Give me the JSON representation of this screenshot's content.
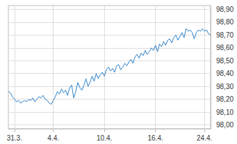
{
  "chart_data": {
    "type": "line",
    "color": "#2a7fc9",
    "grid": true,
    "categories": [
      null,
      null,
      null,
      "31.3.",
      null,
      null,
      null,
      null,
      null,
      null,
      null,
      null,
      null,
      null,
      null,
      null,
      null,
      null,
      null,
      null,
      null,
      null,
      "4.4.",
      null,
      null,
      null,
      null,
      null,
      null,
      null,
      null,
      null,
      null,
      null,
      null,
      null,
      null,
      null,
      null,
      null,
      null,
      null,
      null,
      null,
      null,
      null,
      null,
      "10.4.",
      null,
      null,
      null,
      null,
      null,
      null,
      null,
      null,
      null,
      null,
      null,
      null,
      null,
      null,
      null,
      null,
      null,
      null,
      null,
      null,
      null,
      null,
      null,
      null,
      "16.4.",
      null,
      null,
      null,
      null,
      null,
      null,
      null,
      null,
      null,
      null,
      null,
      null,
      null,
      null,
      null,
      null,
      null,
      null,
      null,
      null,
      null,
      null,
      null,
      "24.4.",
      null,
      null,
      null
    ],
    "values": [
      98.26,
      98.25,
      98.22,
      98.2,
      98.18,
      98.19,
      98.17,
      98.18,
      98.19,
      98.18,
      98.2,
      98.19,
      98.21,
      98.18,
      98.2,
      98.22,
      98.21,
      98.23,
      98.2,
      98.19,
      98.17,
      98.16,
      98.19,
      98.22,
      98.26,
      98.24,
      98.28,
      98.25,
      98.27,
      98.23,
      98.29,
      98.31,
      98.21,
      98.26,
      98.33,
      98.29,
      98.27,
      98.31,
      98.36,
      98.3,
      98.33,
      98.38,
      98.34,
      98.4,
      98.36,
      98.39,
      98.41,
      98.38,
      98.43,
      98.45,
      98.42,
      98.44,
      98.41,
      98.46,
      98.47,
      98.43,
      98.45,
      98.48,
      98.46,
      98.49,
      98.51,
      98.48,
      98.53,
      98.55,
      98.52,
      98.56,
      98.54,
      98.58,
      98.55,
      98.57,
      98.6,
      98.58,
      98.62,
      98.57,
      98.63,
      98.61,
      98.65,
      98.62,
      98.66,
      98.67,
      98.64,
      98.68,
      98.7,
      98.66,
      98.69,
      98.72,
      98.68,
      98.75,
      98.73,
      98.74,
      98.72,
      98.67,
      98.72,
      98.74,
      98.73,
      98.75,
      98.73,
      98.74,
      98.71,
      98.7
    ],
    "ylim": [
      97.97,
      98.93
    ],
    "yticks": [
      {
        "value": 98.0,
        "label": "98,00"
      },
      {
        "value": 98.1,
        "label": "98,10"
      },
      {
        "value": 98.2,
        "label": "98,20"
      },
      {
        "value": 98.3,
        "label": "98,30"
      },
      {
        "value": 98.4,
        "label": "98,40"
      },
      {
        "value": 98.5,
        "label": "98,50"
      },
      {
        "value": 98.6,
        "label": "98,60"
      },
      {
        "value": 98.7,
        "label": "98,70"
      },
      {
        "value": 98.8,
        "label": "98,80"
      },
      {
        "value": 98.9,
        "label": "98,90"
      }
    ]
  }
}
